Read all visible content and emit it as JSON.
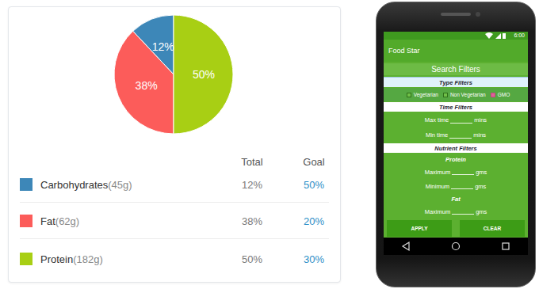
{
  "chart_data": {
    "type": "pie",
    "categories": [
      "Carbohydrates",
      "Fat",
      "Protein"
    ],
    "values": [
      12,
      38,
      50
    ],
    "value_labels": [
      "12%",
      "38%",
      "50%"
    ],
    "colors": [
      "#3d87b8",
      "#fc5c5a",
      "#a8cf14"
    ],
    "data_labels": true
  },
  "table": {
    "columns": [
      "Total",
      "Goal"
    ],
    "rows": [
      {
        "amount": "(45g)",
        "total": "12%",
        "goal": "50%"
      },
      {
        "amount": "(62g)",
        "total": "38%",
        "goal": "20%"
      },
      {
        "amount": "(182g)",
        "total": "50%",
        "goal": "30%"
      }
    ]
  },
  "phone": {
    "status_time": "6:00",
    "app_title": "Food Star",
    "header": "Search Filters",
    "sections": [
      {
        "title": "Type Filters",
        "options": [
          {
            "label": "Vegetarian",
            "checked": false
          },
          {
            "label": "Non Vegetarian",
            "checked": false
          },
          {
            "label": "GMO",
            "checked": true
          }
        ]
      },
      {
        "title": "Time Filters",
        "fields": [
          {
            "label": "Max time",
            "unit": "mins"
          },
          {
            "label": "Min time",
            "unit": "mins"
          }
        ]
      },
      {
        "title": "Nutrient Filters",
        "groups": [
          {
            "title": "Protein",
            "fields": [
              {
                "label": "Maximum",
                "unit": "gms"
              },
              {
                "label": "Minimum",
                "unit": "gms"
              }
            ]
          },
          {
            "title": "Fat",
            "fields": [
              {
                "label": "Maximum",
                "unit": "gms"
              }
            ]
          }
        ]
      }
    ],
    "buttons": [
      "APPLY",
      "CLEAR"
    ]
  }
}
